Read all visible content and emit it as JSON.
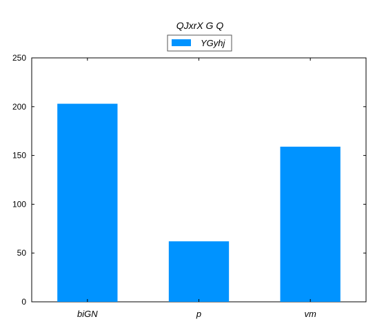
{
  "chart_data": {
    "type": "bar",
    "title": "QJxrX G Q",
    "xlabel": "",
    "ylabel": "",
    "categories": [
      "biGN",
      "p",
      "vm"
    ],
    "series": [
      {
        "name": "YGyhj",
        "values": [
          203,
          62,
          159
        ],
        "color": "#0093ff"
      }
    ],
    "ylim": [
      0,
      250
    ],
    "yticks": [
      0,
      50,
      100,
      150,
      200,
      250
    ],
    "legend": {
      "placement": "top-center"
    },
    "grid": false
  }
}
